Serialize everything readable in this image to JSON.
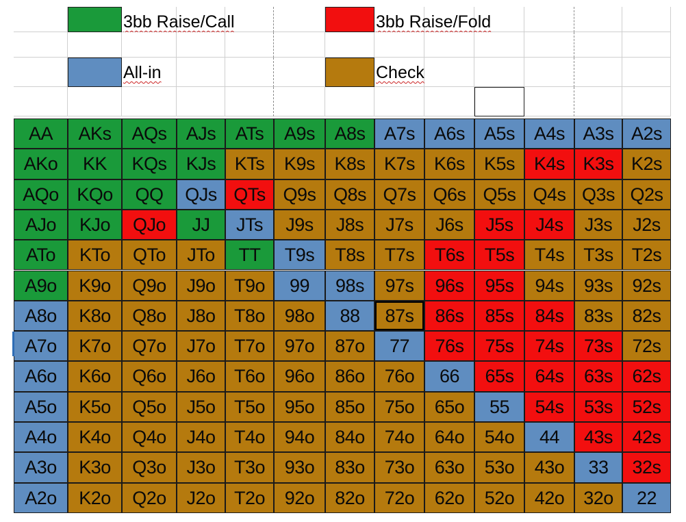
{
  "legend": {
    "raise_call": {
      "label": "3bb Raise/Call",
      "color": "#1a9a3a"
    },
    "raise_fold": {
      "label": "3bb Raise/Fold",
      "color": "#f20f0f"
    },
    "all_in": {
      "label": "All-in",
      "color": "#5f8dc0"
    },
    "check": {
      "label": "Check",
      "color": "#b57a0e"
    }
  },
  "colors": {
    "G": "#1a9a3a",
    "R": "#f20f0f",
    "B": "#5f8dc0",
    "C": "#b57a0e"
  },
  "hand_grid": [
    [
      [
        "AA",
        "G"
      ],
      [
        "AKs",
        "G"
      ],
      [
        "AQs",
        "G"
      ],
      [
        "AJs",
        "G"
      ],
      [
        "ATs",
        "G"
      ],
      [
        "A9s",
        "G"
      ],
      [
        "A8s",
        "G"
      ],
      [
        "A7s",
        "B"
      ],
      [
        "A6s",
        "B"
      ],
      [
        "A5s",
        "B"
      ],
      [
        "A4s",
        "B"
      ],
      [
        "A3s",
        "B"
      ],
      [
        "A2s",
        "B"
      ]
    ],
    [
      [
        "AKo",
        "G"
      ],
      [
        "KK",
        "G"
      ],
      [
        "KQs",
        "G"
      ],
      [
        "KJs",
        "G"
      ],
      [
        "KTs",
        "C"
      ],
      [
        "K9s",
        "C"
      ],
      [
        "K8s",
        "C"
      ],
      [
        "K7s",
        "C"
      ],
      [
        "K6s",
        "C"
      ],
      [
        "K5s",
        "C"
      ],
      [
        "K4s",
        "R"
      ],
      [
        "K3s",
        "R"
      ],
      [
        "K2s",
        "C"
      ]
    ],
    [
      [
        "AQo",
        "G"
      ],
      [
        "KQo",
        "G"
      ],
      [
        "QQ",
        "G"
      ],
      [
        "QJs",
        "B"
      ],
      [
        "QTs",
        "R"
      ],
      [
        "Q9s",
        "C"
      ],
      [
        "Q8s",
        "C"
      ],
      [
        "Q7s",
        "C"
      ],
      [
        "Q6s",
        "C"
      ],
      [
        "Q5s",
        "C"
      ],
      [
        "Q4s",
        "C"
      ],
      [
        "Q3s",
        "C"
      ],
      [
        "Q2s",
        "C"
      ]
    ],
    [
      [
        "AJo",
        "G"
      ],
      [
        "KJo",
        "G"
      ],
      [
        "QJo",
        "R"
      ],
      [
        "JJ",
        "G"
      ],
      [
        "JTs",
        "B"
      ],
      [
        "J9s",
        "C"
      ],
      [
        "J8s",
        "C"
      ],
      [
        "J7s",
        "C"
      ],
      [
        "J6s",
        "C"
      ],
      [
        "J5s",
        "R"
      ],
      [
        "J4s",
        "R"
      ],
      [
        "J3s",
        "C"
      ],
      [
        "J2s",
        "C"
      ]
    ],
    [
      [
        "ATo",
        "G"
      ],
      [
        "KTo",
        "C"
      ],
      [
        "QTo",
        "C"
      ],
      [
        "JTo",
        "C"
      ],
      [
        "TT",
        "G"
      ],
      [
        "T9s",
        "B"
      ],
      [
        "T8s",
        "C"
      ],
      [
        "T7s",
        "C"
      ],
      [
        "T6s",
        "R"
      ],
      [
        "T5s",
        "R"
      ],
      [
        "T4s",
        "C"
      ],
      [
        "T3s",
        "C"
      ],
      [
        "T2s",
        "C"
      ]
    ],
    [
      [
        "A9o",
        "G"
      ],
      [
        "K9o",
        "C"
      ],
      [
        "Q9o",
        "C"
      ],
      [
        "J9o",
        "C"
      ],
      [
        "T9o",
        "C"
      ],
      [
        "99",
        "B"
      ],
      [
        "98s",
        "B"
      ],
      [
        "97s",
        "C"
      ],
      [
        "96s",
        "R"
      ],
      [
        "95s",
        "R"
      ],
      [
        "94s",
        "C"
      ],
      [
        "93s",
        "C"
      ],
      [
        "92s",
        "C"
      ]
    ],
    [
      [
        "A8o",
        "B"
      ],
      [
        "K8o",
        "C"
      ],
      [
        "Q8o",
        "C"
      ],
      [
        "J8o",
        "C"
      ],
      [
        "T8o",
        "C"
      ],
      [
        "98o",
        "C"
      ],
      [
        "88",
        "B"
      ],
      [
        "87s",
        "C"
      ],
      [
        "86s",
        "R"
      ],
      [
        "85s",
        "R"
      ],
      [
        "84s",
        "R"
      ],
      [
        "83s",
        "C"
      ],
      [
        "82s",
        "C"
      ]
    ],
    [
      [
        "A7o",
        "B"
      ],
      [
        "K7o",
        "C"
      ],
      [
        "Q7o",
        "C"
      ],
      [
        "J7o",
        "C"
      ],
      [
        "T7o",
        "C"
      ],
      [
        "97o",
        "C"
      ],
      [
        "87o",
        "C"
      ],
      [
        "77",
        "B"
      ],
      [
        "76s",
        "R"
      ],
      [
        "75s",
        "R"
      ],
      [
        "74s",
        "R"
      ],
      [
        "73s",
        "R"
      ],
      [
        "72s",
        "C"
      ]
    ],
    [
      [
        "A6o",
        "B"
      ],
      [
        "K6o",
        "C"
      ],
      [
        "Q6o",
        "C"
      ],
      [
        "J6o",
        "C"
      ],
      [
        "T6o",
        "C"
      ],
      [
        "96o",
        "C"
      ],
      [
        "86o",
        "C"
      ],
      [
        "76o",
        "C"
      ],
      [
        "66",
        "B"
      ],
      [
        "65s",
        "R"
      ],
      [
        "64s",
        "R"
      ],
      [
        "63s",
        "R"
      ],
      [
        "62s",
        "R"
      ]
    ],
    [
      [
        "A5o",
        "B"
      ],
      [
        "K5o",
        "C"
      ],
      [
        "Q5o",
        "C"
      ],
      [
        "J5o",
        "C"
      ],
      [
        "T5o",
        "C"
      ],
      [
        "95o",
        "C"
      ],
      [
        "85o",
        "C"
      ],
      [
        "75o",
        "C"
      ],
      [
        "65o",
        "C"
      ],
      [
        "55",
        "B"
      ],
      [
        "54s",
        "R"
      ],
      [
        "53s",
        "R"
      ],
      [
        "52s",
        "R"
      ]
    ],
    [
      [
        "A4o",
        "B"
      ],
      [
        "K4o",
        "C"
      ],
      [
        "Q4o",
        "C"
      ],
      [
        "J4o",
        "C"
      ],
      [
        "T4o",
        "C"
      ],
      [
        "94o",
        "C"
      ],
      [
        "84o",
        "C"
      ],
      [
        "74o",
        "C"
      ],
      [
        "64o",
        "C"
      ],
      [
        "54o",
        "C"
      ],
      [
        "44",
        "B"
      ],
      [
        "43s",
        "R"
      ],
      [
        "42s",
        "R"
      ]
    ],
    [
      [
        "A3o",
        "B"
      ],
      [
        "K3o",
        "C"
      ],
      [
        "Q3o",
        "C"
      ],
      [
        "J3o",
        "C"
      ],
      [
        "T3o",
        "C"
      ],
      [
        "93o",
        "C"
      ],
      [
        "83o",
        "C"
      ],
      [
        "73o",
        "C"
      ],
      [
        "63o",
        "C"
      ],
      [
        "53o",
        "C"
      ],
      [
        "43o",
        "C"
      ],
      [
        "33",
        "B"
      ],
      [
        "32s",
        "R"
      ]
    ],
    [
      [
        "A2o",
        "B"
      ],
      [
        "K2o",
        "C"
      ],
      [
        "Q2o",
        "C"
      ],
      [
        "J2o",
        "C"
      ],
      [
        "T2o",
        "C"
      ],
      [
        "92o",
        "C"
      ],
      [
        "82o",
        "C"
      ],
      [
        "72o",
        "C"
      ],
      [
        "62o",
        "C"
      ],
      [
        "52o",
        "C"
      ],
      [
        "42o",
        "C"
      ],
      [
        "32o",
        "C"
      ],
      [
        "22",
        "B"
      ]
    ]
  ]
}
